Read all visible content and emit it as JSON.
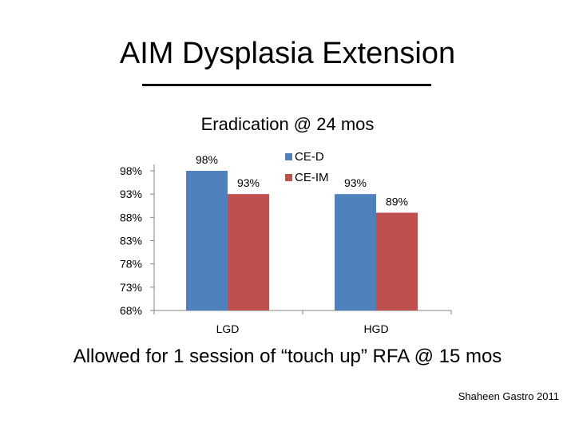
{
  "slide": {
    "title": "AIM Dysplasia Extension",
    "footnote": "Allowed for 1 session of “touch up” RFA @ 15 mos",
    "credit": "Shaheen Gastro 2011"
  },
  "chart_data": {
    "type": "bar",
    "title": "Eradication @ 24 mos",
    "categories": [
      "LGD",
      "HGD"
    ],
    "series": [
      {
        "name": "CE-D",
        "values": [
          98,
          93
        ],
        "labels": [
          "98%",
          "93%"
        ],
        "color": "#4F81BD"
      },
      {
        "name": "CE-IM",
        "values": [
          93,
          89
        ],
        "labels": [
          "93%",
          "89%"
        ],
        "color": "#C0504D"
      }
    ],
    "ylim": [
      68,
      98
    ],
    "yticks": [
      68,
      73,
      78,
      83,
      88,
      93,
      98
    ],
    "ytick_labels": [
      "68%",
      "73%",
      "78%",
      "83%",
      "88%",
      "93%",
      "98%"
    ],
    "legend_position": "top-right",
    "xlabel": "",
    "ylabel": "",
    "grid": false
  }
}
